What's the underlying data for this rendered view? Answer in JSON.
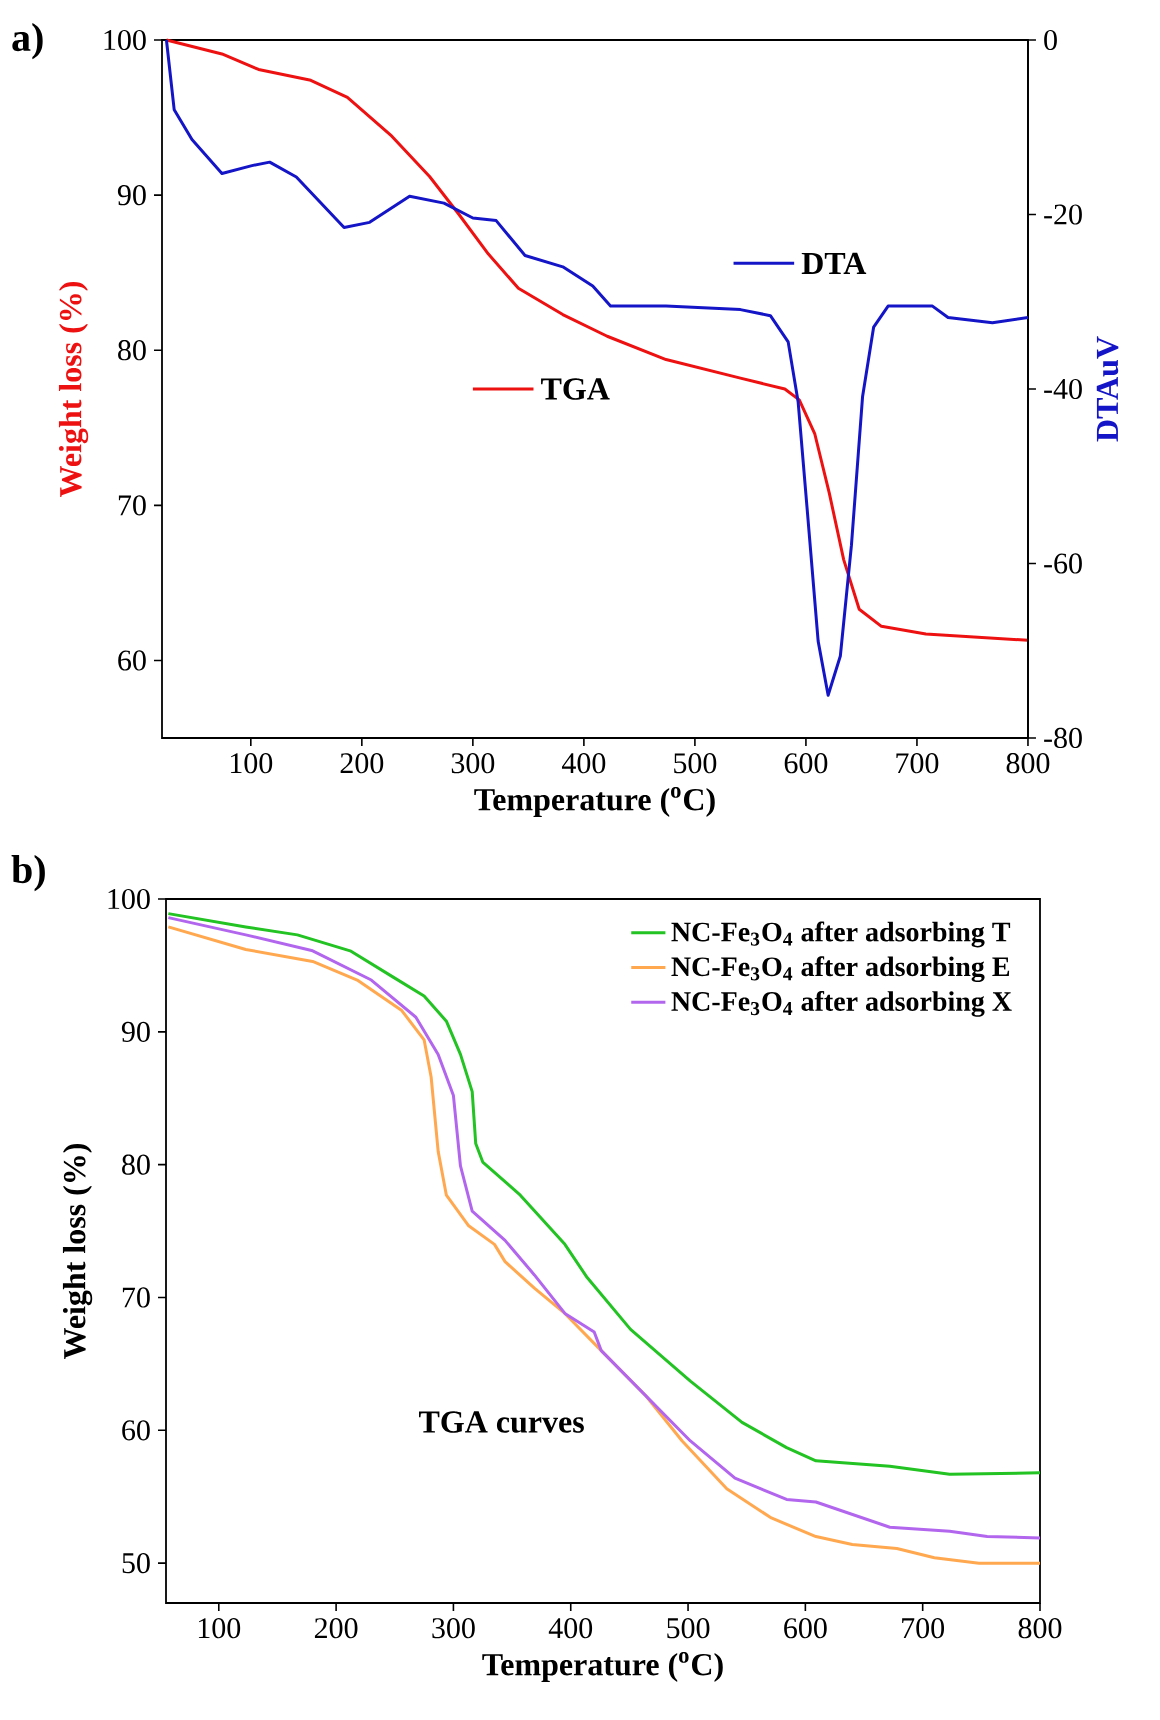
{
  "chart_data": [
    {
      "type": "line",
      "xlabel": "Temperature ($^{o}$C)",
      "ylabel": "Weight loss (%)",
      "y2label": "DTAuV",
      "xlim": [
        20,
        800
      ],
      "ylim": [
        55,
        100
      ],
      "y2lim": [
        -80,
        0
      ],
      "xticks": [
        100,
        200,
        300,
        400,
        500,
        600,
        700,
        800
      ],
      "yticks": [
        60,
        70,
        80,
        90,
        100
      ],
      "y2ticks": [
        -80,
        -60,
        -40,
        -20,
        0
      ],
      "annotations": [
        "a)"
      ],
      "legend": "right",
      "series": [
        {
          "name": "TGA",
          "color": "#ee1111",
          "axis": "y",
          "x": [
            24,
            74,
            107,
            154,
            187,
            227,
            261,
            287,
            314,
            341,
            381,
            421,
            474,
            541,
            581,
            594,
            608,
            621,
            634,
            648,
            668,
            708,
            800
          ],
          "values": [
            100,
            99.1,
            98.1,
            97.4,
            96.3,
            93.8,
            91.2,
            88.8,
            86.2,
            84.0,
            82.3,
            80.9,
            79.4,
            78.2,
            77.5,
            76.8,
            74.6,
            70.8,
            66.5,
            63.3,
            62.2,
            61.7,
            61.3
          ]
        },
        {
          "name": "DTA",
          "color": "#1515c8",
          "axis": "y2",
          "x": [
            24,
            31,
            47,
            74,
            101,
            117,
            141,
            184,
            207,
            243,
            274,
            300,
            321,
            347,
            381,
            408,
            424,
            474,
            541,
            568,
            584,
            593,
            601,
            611,
            620,
            631,
            641,
            651,
            661,
            674,
            714,
            728,
            768,
            800
          ],
          "values": [
            0,
            -8.0,
            -11.4,
            -15.3,
            -14.4,
            -14.0,
            -15.7,
            -21.5,
            -20.9,
            -17.9,
            -18.7,
            -20.4,
            -20.7,
            -24.7,
            -26.0,
            -28.2,
            -30.5,
            -30.5,
            -30.9,
            -31.6,
            -34.6,
            -41.5,
            -53.6,
            -68.9,
            -75.1,
            -70.6,
            -57.9,
            -40.9,
            -32.9,
            -30.5,
            -30.5,
            -31.8,
            -32.4,
            -31.8
          ]
        }
      ]
    },
    {
      "type": "line",
      "xlabel": "Temperature ($^{o}$C)",
      "ylabel": "Weight loss (%)",
      "xlim": [
        55,
        800
      ],
      "ylim": [
        47,
        100
      ],
      "xticks": [
        100,
        200,
        300,
        400,
        500,
        600,
        700,
        800
      ],
      "yticks": [
        50,
        60,
        70,
        80,
        90,
        100
      ],
      "legend": "top right",
      "annotations": [
        "b)",
        "TGA curves"
      ],
      "series": [
        {
          "name": "NC-Fe$_{3}$O$_{4}$ after adsorbing T",
          "color": "#22c322",
          "x": [
            57,
            123,
            167,
            212,
            249,
            275,
            294,
            306,
            316,
            319,
            325,
            357,
            395,
            414,
            451,
            502,
            546,
            584,
            609,
            672,
            723,
            800
          ],
          "values": [
            98.9,
            97.9,
            97.3,
            96.1,
            94.1,
            92.7,
            90.8,
            88.3,
            85.5,
            81.6,
            80.2,
            77.7,
            74.0,
            71.5,
            67.6,
            63.7,
            60.6,
            58.7,
            57.7,
            57.3,
            56.7,
            56.8
          ]
        },
        {
          "name": "NC-Fe$_{3}$O$_{4}$ after adsorbing E",
          "color": "#ffa850",
          "x": [
            57,
            123,
            180,
            218,
            256,
            275,
            281,
            287,
            294,
            313,
            335,
            344,
            369,
            395,
            426,
            464,
            495,
            533,
            571,
            609,
            640,
            678,
            710,
            748,
            800
          ],
          "values": [
            97.9,
            96.2,
            95.3,
            93.9,
            91.6,
            89.4,
            86.6,
            81.0,
            77.7,
            75.4,
            74.0,
            72.7,
            70.7,
            68.8,
            66.0,
            62.6,
            59.2,
            55.6,
            53.4,
            52.0,
            51.4,
            51.1,
            50.4,
            50.0,
            50.0
          ]
        },
        {
          "name": "NC-Fe$_{3}$O$_{4}$ after adsorbing X",
          "color": "#b266ee",
          "x": [
            57,
            123,
            180,
            230,
            268,
            287,
            300,
            306,
            316,
            344,
            369,
            395,
            420,
            426,
            464,
            502,
            540,
            584,
            609,
            672,
            723,
            755,
            800
          ],
          "values": [
            98.6,
            97.3,
            96.1,
            93.9,
            91.1,
            88.3,
            85.2,
            79.9,
            76.5,
            74.3,
            71.7,
            68.8,
            67.4,
            66.0,
            62.6,
            59.2,
            56.4,
            54.8,
            54.6,
            52.7,
            52.4,
            52.0,
            51.9
          ]
        }
      ]
    }
  ]
}
